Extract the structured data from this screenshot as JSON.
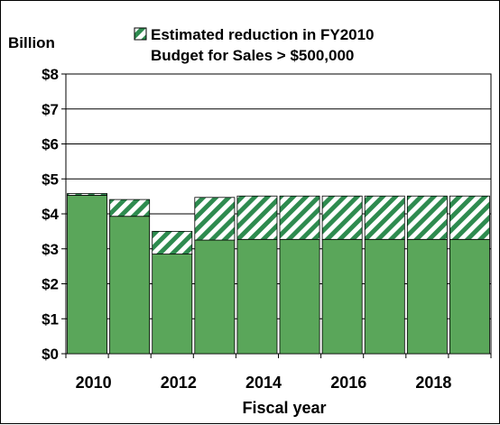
{
  "chart_data": {
    "type": "bar",
    "ylabel": "Billion",
    "xlabel": "Fiscal year",
    "ylim": [
      0,
      8
    ],
    "yticks": [
      "$0",
      "$1",
      "$2",
      "$3",
      "$4",
      "$5",
      "$6",
      "$7",
      "$8"
    ],
    "xtick_labels": [
      "2010",
      "2012",
      "2014",
      "2016",
      "2018"
    ],
    "legend": {
      "line1": "Estimated reduction in FY2010",
      "line2": "Budget for Sales > $500,000",
      "placement": "top"
    },
    "grid": true,
    "categories": [
      2010,
      2011,
      2012,
      2013,
      2014,
      2015,
      2016,
      2017,
      2018,
      2019
    ],
    "series": [
      {
        "role": "base",
        "values": [
          4.53,
          3.93,
          2.85,
          3.25,
          3.27,
          3.27,
          3.27,
          3.27,
          3.27,
          3.27
        ]
      },
      {
        "role": "reduction",
        "name": "Estimated reduction in FY2010 Budget for Sales > $500,000",
        "values": [
          0.05,
          0.48,
          0.65,
          1.22,
          1.24,
          1.24,
          1.24,
          1.24,
          1.24,
          1.24
        ]
      }
    ],
    "colors": {
      "base": "#5aa65a",
      "stripe": "#2e8b4f",
      "grid": "#000000"
    }
  }
}
